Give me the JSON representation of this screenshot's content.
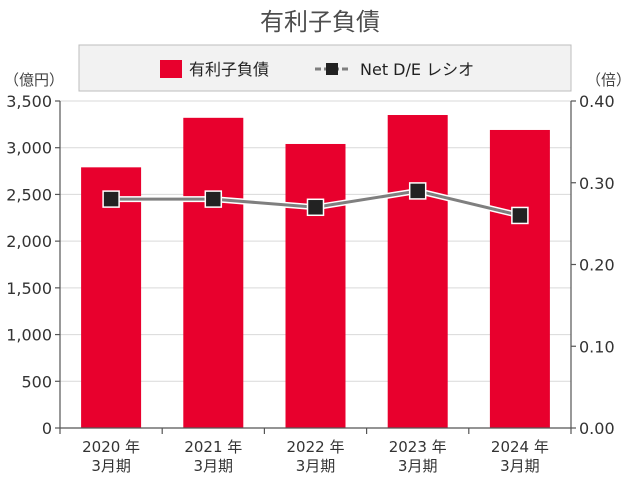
{
  "chart_data": {
    "type": "bar",
    "title": "有利子負債",
    "categories": [
      [
        "2020 年",
        "3月期"
      ],
      [
        "2021 年",
        "3月期"
      ],
      [
        "2022 年",
        "3月期"
      ],
      [
        "2023 年",
        "3月期"
      ],
      [
        "2024 年",
        "3月期"
      ]
    ],
    "series": [
      {
        "name": "有利子負債",
        "type": "bar",
        "axis": "left",
        "color": "#e8002d",
        "values": [
          2790,
          3320,
          3040,
          3350,
          3190
        ]
      },
      {
        "name": "Net D/E レシオ",
        "type": "line",
        "axis": "right",
        "color": "#7f7f7f",
        "marker_color": "#222222",
        "values": [
          0.28,
          0.28,
          0.27,
          0.29,
          0.26
        ]
      }
    ],
    "y_left": {
      "unit": "（億円）",
      "range": [
        0,
        3500
      ],
      "ticks": [
        {
          "v": 0,
          "label": "0"
        },
        {
          "v": 500,
          "label": "500"
        },
        {
          "v": 1000,
          "label": "1,000"
        },
        {
          "v": 1500,
          "label": "1,500"
        },
        {
          "v": 2000,
          "label": "2,000"
        },
        {
          "v": 2500,
          "label": "2,500"
        },
        {
          "v": 3000,
          "label": "3,000"
        },
        {
          "v": 3500,
          "label": "3,500"
        }
      ]
    },
    "y_right": {
      "unit": "（倍）",
      "range": [
        0,
        0.4
      ],
      "ticks": [
        {
          "v": 0,
          "label": "0.00"
        },
        {
          "v": 0.1,
          "label": "0.10"
        },
        {
          "v": 0.2,
          "label": "0.20"
        },
        {
          "v": 0.3,
          "label": "0.30"
        },
        {
          "v": 0.4,
          "label": "0.40"
        }
      ]
    },
    "grid": true,
    "legend_position": "top"
  }
}
